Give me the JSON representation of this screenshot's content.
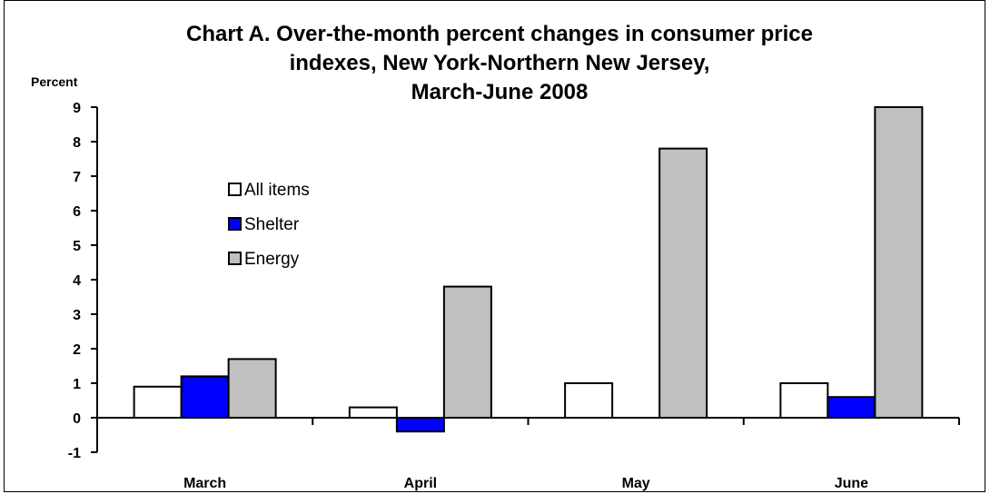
{
  "chart_data": {
    "type": "bar",
    "title": "Chart A. Over-the-month percent changes in consumer price\nindexes, New York-Northern New Jersey,\nMarch-June 2008",
    "ylabel": "Percent",
    "xlabel": "",
    "categories": [
      "March",
      "April",
      "May",
      "June"
    ],
    "series": [
      {
        "name": "All items",
        "values": [
          0.9,
          0.3,
          1.0,
          1.0
        ],
        "color": "#ffffff"
      },
      {
        "name": "Shelter",
        "values": [
          1.2,
          -0.4,
          0.0,
          0.6
        ],
        "color": "#0000ff"
      },
      {
        "name": "Energy",
        "values": [
          1.7,
          3.8,
          7.8,
          9.0
        ],
        "color": "#c0c0c0"
      }
    ],
    "ylim": [
      -1,
      9
    ],
    "yticks": [
      -1,
      0,
      1,
      2,
      3,
      4,
      5,
      6,
      7,
      8,
      9
    ],
    "grid": false,
    "legend": "upper-left"
  }
}
